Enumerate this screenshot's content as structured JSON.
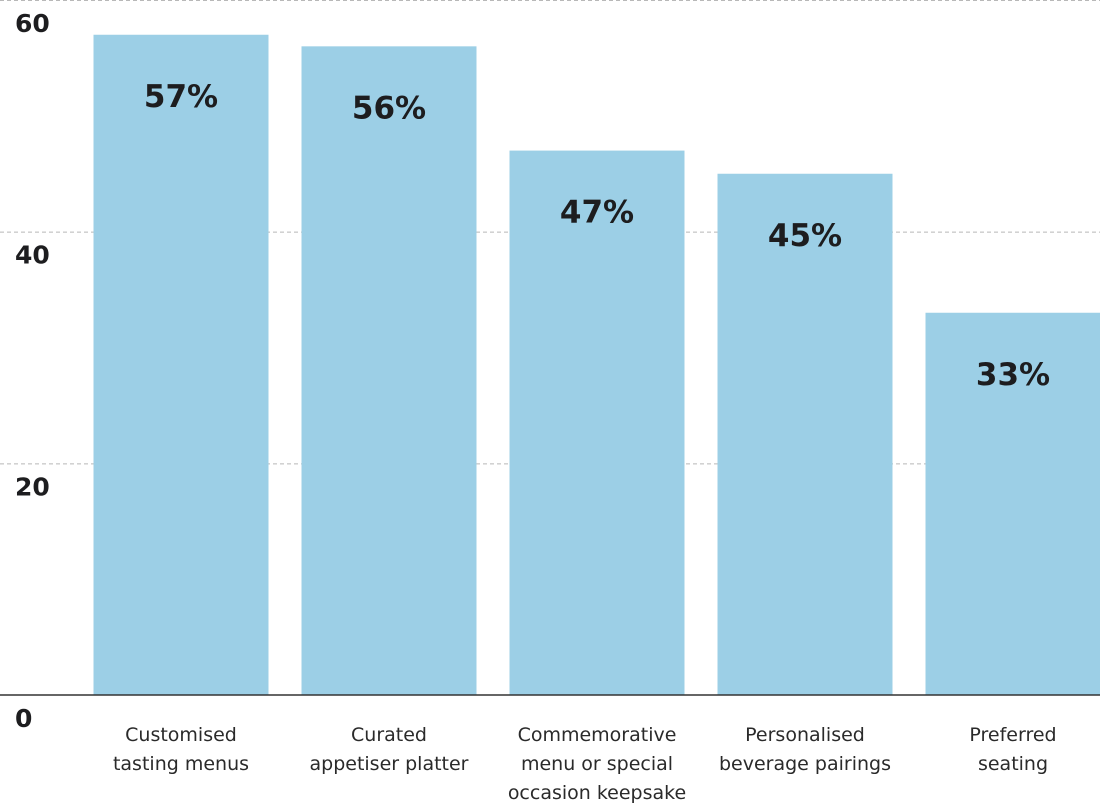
{
  "chart_data": {
    "type": "bar",
    "categories": [
      "Customised\ntasting menus",
      "Curated\nappetiser platter",
      "Commemorative\nmenu or special\noccasion keepsake",
      "Personalised\nbeverage pairings",
      "Preferred\nseating"
    ],
    "values": [
      57,
      56,
      47,
      45,
      33
    ],
    "value_labels": [
      "57%",
      "56%",
      "47%",
      "45%",
      "33%"
    ],
    "color": "#9ccfe6",
    "ylim": [
      0,
      60
    ],
    "yticks": [
      0,
      20,
      40,
      60
    ],
    "grid": true
  }
}
